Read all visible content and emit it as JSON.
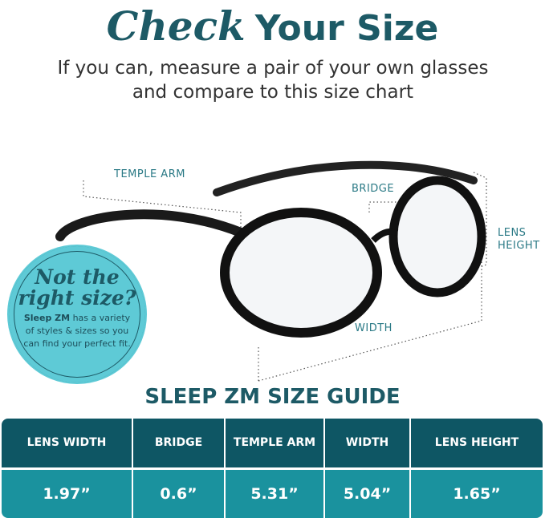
{
  "header": {
    "title_script": "Check",
    "title_bold": "Your Size",
    "subtitle": "If you can, measure a pair of your own glasses and compare to this size chart"
  },
  "labels": {
    "temple_arm": "TEMPLE ARM",
    "bridge": "BRIDGE",
    "lens_height": "LENS HEIGHT",
    "width": "WIDTH"
  },
  "badge": {
    "heading": "Not the right size?",
    "brand": "Sleep ZM",
    "body": " has a variety of styles & sizes so you can find your perfect fit."
  },
  "guide": {
    "title": "SLEEP ZM SIZE GUIDE",
    "columns": [
      "LENS WIDTH",
      "BRIDGE",
      "TEMPLE ARM",
      "WIDTH",
      "LENS HEIGHT"
    ],
    "values": [
      "1.97”",
      "0.6”",
      "5.31”",
      "5.04”",
      "1.65”"
    ]
  },
  "colors": {
    "primary": "#1d5a66",
    "header_bg": "#0e5664",
    "row_bg": "#1a929e",
    "badge_bg": "#5ecad6"
  }
}
